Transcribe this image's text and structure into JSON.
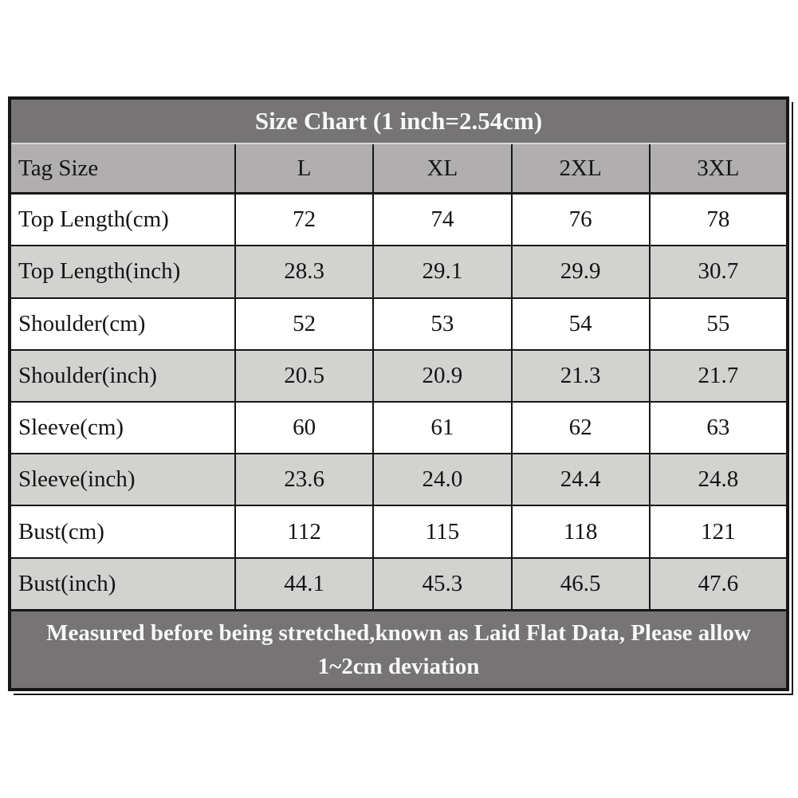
{
  "chart_data": {
    "type": "table",
    "title": "Size Chart (1 inch=2.54cm)",
    "columns": [
      "Tag Size",
      "L",
      "XL",
      "2XL",
      "3XL"
    ],
    "rows": [
      {
        "label": "Top Length(cm)",
        "values": [
          "72",
          "74",
          "76",
          "78"
        ]
      },
      {
        "label": "Top Length(inch)",
        "values": [
          "28.3",
          "29.1",
          "29.9",
          "30.7"
        ]
      },
      {
        "label": "Shoulder(cm)",
        "values": [
          "52",
          "53",
          "54",
          "55"
        ]
      },
      {
        "label": "Shoulder(inch)",
        "values": [
          "20.5",
          "20.9",
          "21.3",
          "21.7"
        ]
      },
      {
        "label": "Sleeve(cm)",
        "values": [
          "60",
          "61",
          "62",
          "63"
        ]
      },
      {
        "label": "Sleeve(inch)",
        "values": [
          "23.6",
          "24.0",
          "24.4",
          "24.8"
        ]
      },
      {
        "label": "Bust(cm)",
        "values": [
          "112",
          "115",
          "118",
          "121"
        ]
      },
      {
        "label": "Bust(inch)",
        "values": [
          "44.1",
          "45.3",
          "46.5",
          "47.6"
        ]
      }
    ],
    "footnote": "Measured before being stretched,known as Laid Flat Data, Please allow 1~2cm deviation",
    "layout": {
      "header_position": "top",
      "grid": "on",
      "row_striping": "alternating white / light gray"
    }
  },
  "colors": {
    "title_bg": "#767474",
    "header_bg": "#b0aeae",
    "row_bg": "#ffffff",
    "row_alt_bg": "#d2d2d0",
    "border": "#161616",
    "title_text": "#f8f8f8",
    "body_text": "#141414",
    "title_separator": "#d8d8d6"
  }
}
